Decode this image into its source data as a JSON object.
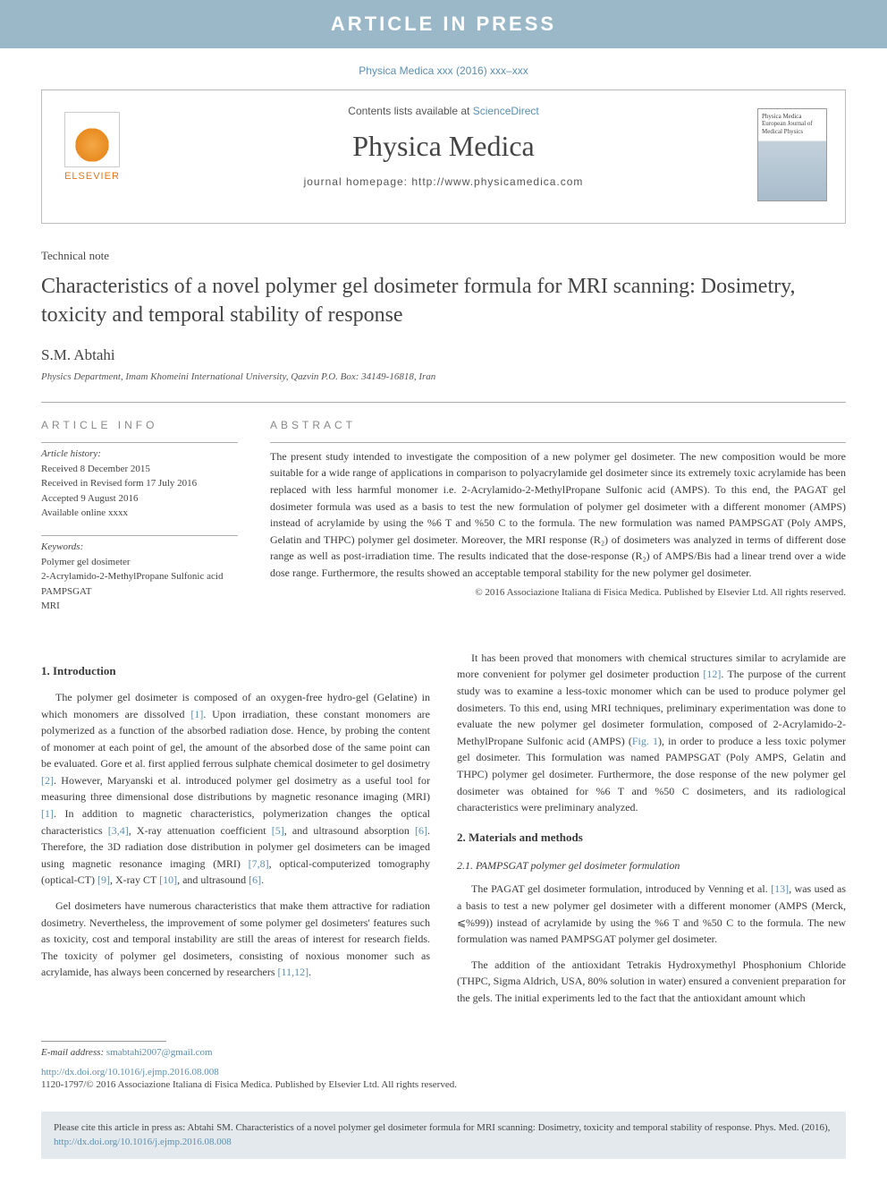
{
  "banner": "ARTICLE IN PRESS",
  "citation": "Physica Medica xxx (2016) xxx–xxx",
  "header": {
    "contents_prefix": "Contents lists available at ",
    "contents_link": "ScienceDirect",
    "journal_name": "Physica Medica",
    "homepage_prefix": "journal homepage: ",
    "homepage_url": "http://www.physicamedica.com",
    "elsevier": "ELSEVIER",
    "cover_text": "Physica Medica\nEuropean Journal of Medical Physics"
  },
  "article": {
    "type": "Technical note",
    "title": "Characteristics of a novel polymer gel dosimeter formula for MRI scanning: Dosimetry, toxicity and temporal stability of response",
    "author": "S.M. Abtahi",
    "affiliation": "Physics Department, Imam Khomeini International University, Qazvin P.O. Box: 34149-16818, Iran"
  },
  "info": {
    "label": "ARTICLE INFO",
    "history_label": "Article history:",
    "history": [
      "Received 8 December 2015",
      "Received in Revised form 17 July 2016",
      "Accepted 9 August 2016",
      "Available online xxxx"
    ],
    "keywords_label": "Keywords:",
    "keywords": [
      "Polymer gel dosimeter",
      "2-Acrylamido-2-MethylPropane Sulfonic acid",
      "PAMPSGAT",
      "MRI"
    ]
  },
  "abstract": {
    "label": "ABSTRACT",
    "text": "The present study intended to investigate the composition of a new polymer gel dosimeter. The new composition would be more suitable for a wide range of applications in comparison to polyacrylamide gel dosimeter since its extremely toxic acrylamide has been replaced with less harmful monomer i.e. 2-Acrylamido-2-MethylPropane Sulfonic acid (AMPS). To this end, the PAGAT gel dosimeter formula was used as a basis to test the new formulation of polymer gel dosimeter with a different monomer (AMPS) instead of acrylamide by using the %6 T and %50 C to the formula. The new formulation was named PAMPSGAT (Poly AMPS, Gelatin and THPC) polymer gel dosimeter. Moreover, the MRI response (R₂) of dosimeters was analyzed in terms of different dose range as well as post-irradiation time. The results indicated that the dose-response (R₂) of AMPS/Bis had a linear trend over a wide dose range. Furthermore, the results showed an acceptable temporal stability for the new polymer gel dosimeter.",
    "copyright": "© 2016 Associazione Italiana di Fisica Medica. Published by Elsevier Ltd. All rights reserved."
  },
  "body": {
    "s1_title": "1. Introduction",
    "s1_p1": "The polymer gel dosimeter is composed of an oxygen-free hydro-gel (Gelatine) in which monomers are dissolved [1]. Upon irradiation, these constant monomers are polymerized as a function of the absorbed radiation dose. Hence, by probing the content of monomer at each point of gel, the amount of the absorbed dose of the same point can be evaluated. Gore et al. first applied ferrous sulphate chemical dosimeter to gel dosimetry [2]. However, Maryanski et al. introduced polymer gel dosimetry as a useful tool for measuring three dimensional dose distributions by magnetic resonance imaging (MRI) [1]. In addition to magnetic characteristics, polymerization changes the optical characteristics [3,4], X-ray attenuation coefficient [5], and ultrasound absorption [6]. Therefore, the 3D radiation dose distribution in polymer gel dosimeters can be imaged using magnetic resonance imaging (MRI) [7,8], optical-computerized tomography (optical-CT) [9], X-ray CT [10], and ultrasound [6].",
    "s1_p2": "Gel dosimeters have numerous characteristics that make them attractive for radiation dosimetry. Nevertheless, the improvement of some polymer gel dosimeters' features such as toxicity, cost and temporal instability are still the areas of interest for research fields. The toxicity of polymer gel dosimeters, consisting of noxious monomer such as acrylamide, has always been concerned by researchers [11,12].",
    "s1_p3": "It has been proved that monomers with chemical structures similar to acrylamide are more convenient for polymer gel dosimeter production [12]. The purpose of the current study was to examine a less-toxic monomer which can be used to produce polymer gel dosimeters. To this end, using MRI techniques, preliminary experimentation was done to evaluate the new polymer gel dosimeter formulation, composed of 2-Acrylamido-2-MethylPropane Sulfonic acid (AMPS) (Fig. 1), in order to produce a less toxic polymer gel dosimeter. This formulation was named PAMPSGAT (Poly AMPS, Gelatin and THPC) polymer gel dosimeter. Furthermore, the dose response of the new polymer gel dosimeter was obtained for %6 T and %50 C dosimeters, and its radiological characteristics were preliminary analyzed.",
    "s2_title": "2. Materials and methods",
    "s21_title": "2.1. PAMPSGAT polymer gel dosimeter formulation",
    "s21_p1": "The PAGAT gel dosimeter formulation, introduced by Venning et al. [13], was used as a basis to test a new polymer gel dosimeter with a different monomer (AMPS (Merck, ⩽%99)) instead of acrylamide by using the %6 T and %50 C to the formula. The new formulation was named PAMPSGAT polymer gel dosimeter.",
    "s21_p2": "The addition of the antioxidant Tetrakis Hydroxymethyl Phosphonium Chloride (THPC, Sigma Aldrich, USA, 80% solution in water) ensured a convenient preparation for the gels. The initial experiments led to the fact that the antioxidant amount which"
  },
  "footer": {
    "email_label": "E-mail address: ",
    "email": "smabtahi2007@gmail.com",
    "doi": "http://dx.doi.org/10.1016/j.ejmp.2016.08.008",
    "issn": "1120-1797/© 2016 Associazione Italiana di Fisica Medica. Published by Elsevier Ltd. All rights reserved.",
    "cite_prefix": "Please cite this article in press as: Abtahi SM. Characteristics of a novel polymer gel dosimeter formula for MRI scanning: Dosimetry, toxicity and temporal stability of response. Phys. Med. (2016), ",
    "cite_url": "http://dx.doi.org/10.1016/j.ejmp.2016.08.008"
  },
  "colors": {
    "banner_bg": "#9bb8c9",
    "link": "#5b8fb0",
    "text": "#3a3a3a",
    "citebox_bg": "#e4e9ed"
  }
}
